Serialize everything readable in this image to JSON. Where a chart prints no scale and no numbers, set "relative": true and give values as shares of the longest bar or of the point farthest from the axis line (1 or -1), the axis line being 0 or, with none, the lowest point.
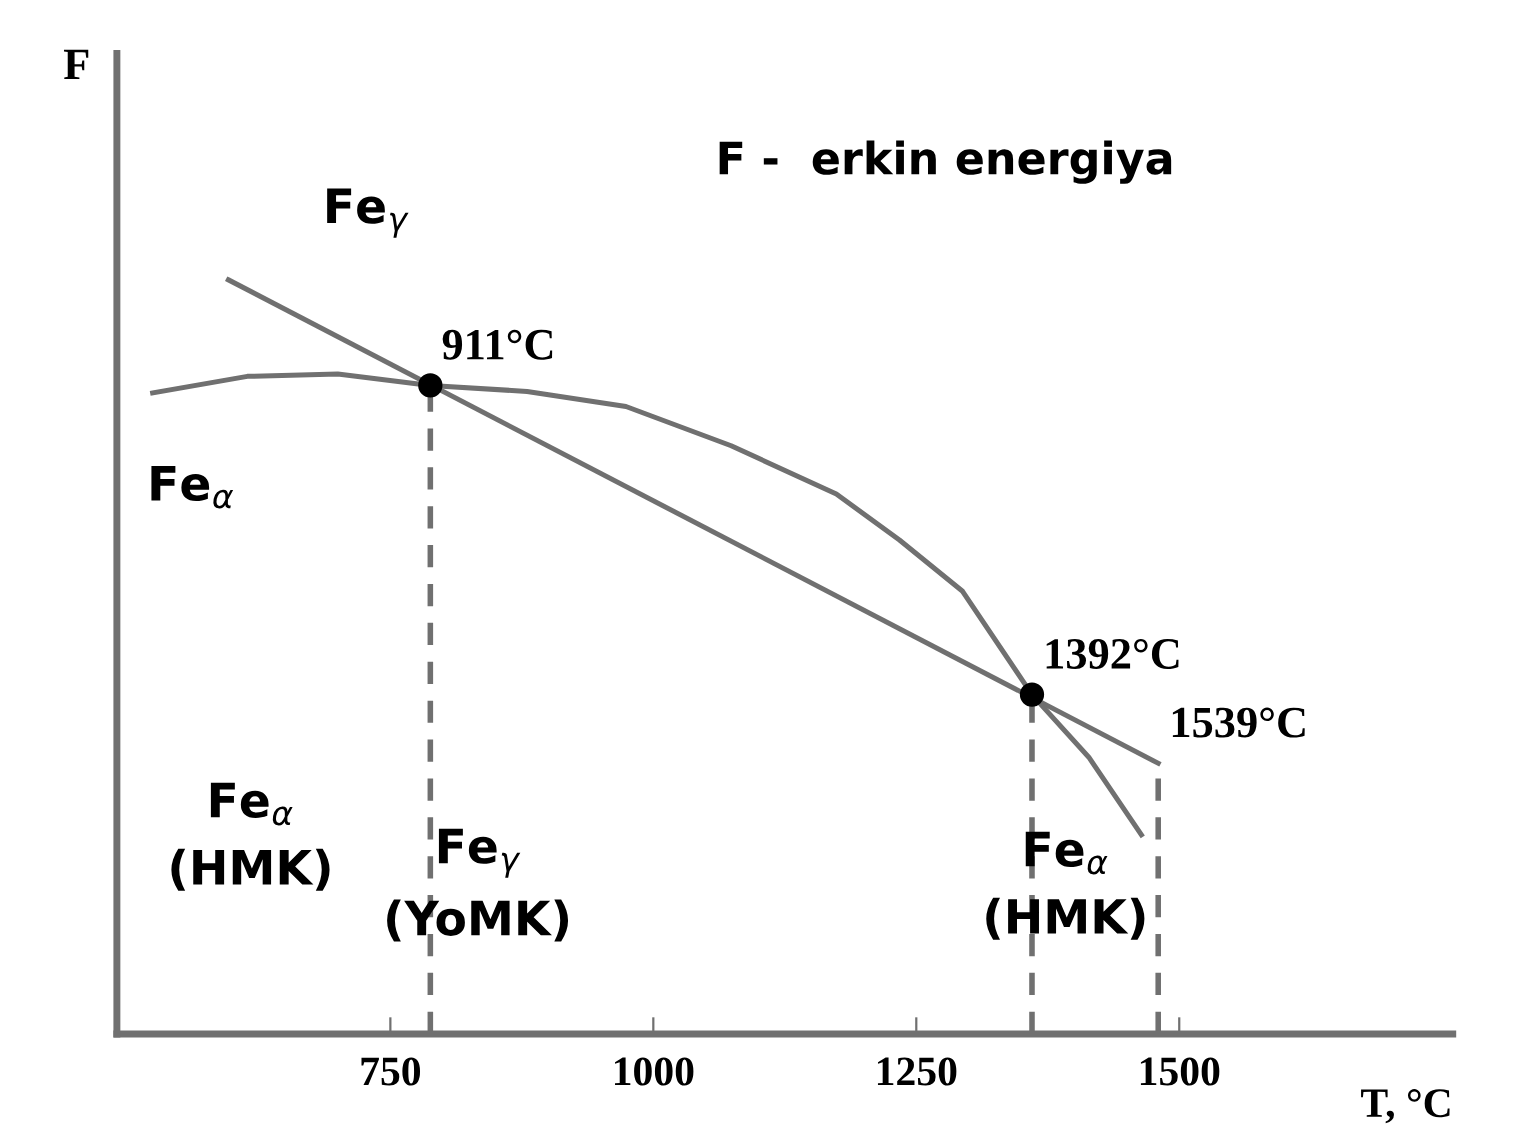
{
  "chart_data": {
    "type": "line",
    "relative": true,
    "title": "F -  erkin energiya",
    "ylabel": "F",
    "xlabel": "T, °C",
    "xlim": [
      490,
      1760
    ],
    "xticks": [
      750,
      1000,
      1250,
      1500
    ],
    "grid": false,
    "legend": false,
    "series": [
      {
        "name": "Fe$_{γ}$",
        "color": "#707070",
        "x": [
          596,
          1480
        ],
        "values": [
          1.0,
          0.359
        ]
      },
      {
        "name": "Fe$_{α}$",
        "color": "#707070",
        "x": [
          524,
          614,
          700,
          788,
          880,
          974,
          1074,
          1174,
          1234,
          1294,
          1360,
          1414,
          1464
        ],
        "values": [
          0.85,
          0.872,
          0.875,
          0.86,
          0.852,
          0.832,
          0.78,
          0.716,
          0.655,
          0.587,
          0.45,
          0.367,
          0.264
        ]
      },
      {
        "color": "#707070",
        "line_style": "dashed",
        "x": [
          788,
          788
        ],
        "values": [
          0,
          0.86
        ]
      },
      {
        "color": "#707070",
        "line_style": "dashed",
        "x": [
          1360,
          1360
        ],
        "values": [
          0,
          0.45
        ]
      },
      {
        "color": "#707070",
        "line_style": "dashed",
        "x": [
          1480,
          1480
        ],
        "values": [
          0,
          0.359
        ]
      },
      {
        "type": "scatter",
        "color": "#000000",
        "marker": "circle",
        "x": [
          788,
          1360
        ],
        "values": [
          0.86,
          0.45
        ]
      }
    ],
    "annotations": [
      {
        "text": "911°C",
        "x": 788,
        "y": 0.86
      },
      {
        "text": "1392°C",
        "x": 1360,
        "y": 0.45
      },
      {
        "text": "1539°C",
        "x": 1480,
        "y": 0.359
      },
      "Fe$_{α}$\n(HMK)",
      "Fe$_{γ}$\n(YoMK)",
      "Fe$_{α}$\n(HMK)"
    ]
  }
}
